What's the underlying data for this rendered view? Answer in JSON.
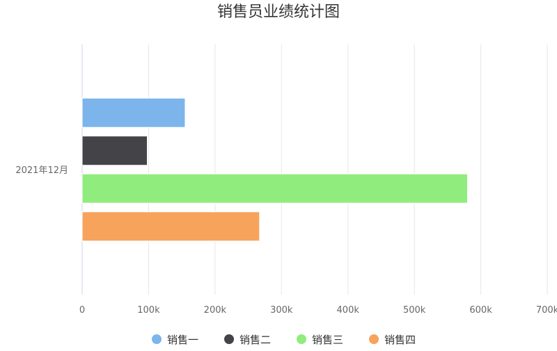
{
  "chart_data": {
    "type": "bar",
    "orientation": "horizontal",
    "title": "销售员业绩统计图",
    "categories": [
      "2021年12月"
    ],
    "series": [
      {
        "name": "销售一",
        "values": [
          155000
        ],
        "color": "#7cb5ec"
      },
      {
        "name": "销售二",
        "values": [
          98000
        ],
        "color": "#434348"
      },
      {
        "name": "销售三",
        "values": [
          580000
        ],
        "color": "#90ed7d"
      },
      {
        "name": "销售四",
        "values": [
          267000
        ],
        "color": "#f7a35c"
      }
    ],
    "xlim": [
      0,
      700000
    ],
    "xticks": [
      0,
      100000,
      200000,
      300000,
      400000,
      500000,
      600000,
      700000
    ],
    "xtick_labels": [
      "0",
      "100k",
      "200k",
      "300k",
      "400k",
      "500k",
      "600k",
      "700k"
    ],
    "grid": true,
    "legend_position": "bottom"
  }
}
